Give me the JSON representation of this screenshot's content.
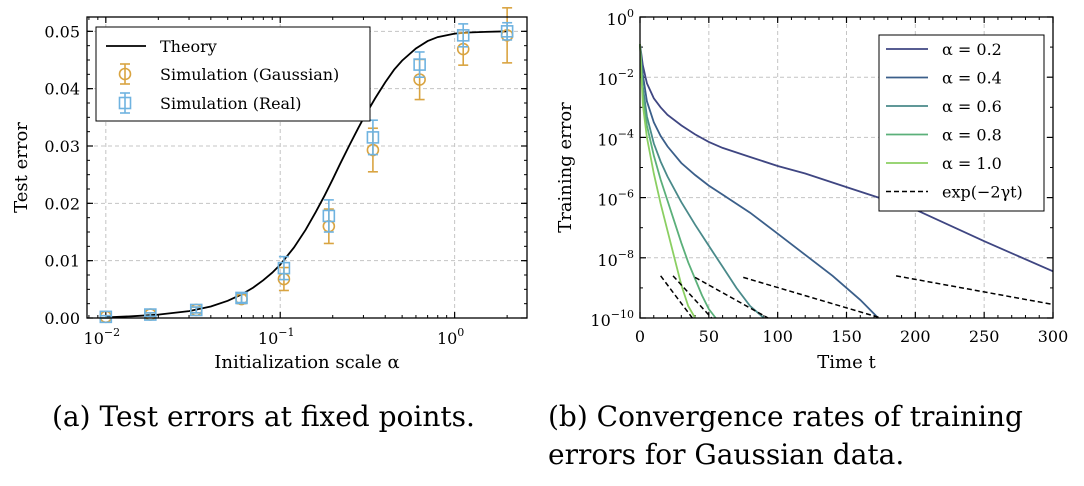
{
  "chart_data": [
    {
      "type": "line",
      "panel": "a",
      "caption": "(a) Test errors at fixed points.",
      "xlabel": "Initialization scale α",
      "ylabel": "Test error",
      "xscale": "log",
      "xlim": [
        0.0078,
        2.6
      ],
      "ylim": [
        0,
        0.0525
      ],
      "xticks": [
        0.01,
        0.1,
        1
      ],
      "xtick_labels": [
        {
          "base": "10",
          "exp": "−2"
        },
        {
          "base": "10",
          "exp": "−1"
        },
        {
          "base": "10",
          "exp": "0"
        }
      ],
      "yticks": [
        0,
        0.01,
        0.02,
        0.03,
        0.04,
        0.05
      ],
      "ytick_labels": [
        "0.00",
        "0.01",
        "0.02",
        "0.03",
        "0.04",
        "0.05"
      ],
      "grid": true,
      "legend_position": "top-left",
      "series": [
        {
          "name": "Theory",
          "kind": "curve",
          "color": "#000000",
          "x": [
            0.01,
            0.014,
            0.02,
            0.03,
            0.04,
            0.05,
            0.06,
            0.07,
            0.08,
            0.09,
            0.1,
            0.12,
            0.14,
            0.16,
            0.18,
            0.2,
            0.22,
            0.25,
            0.28,
            0.3,
            0.35,
            0.4,
            0.45,
            0.5,
            0.6,
            0.7,
            0.8,
            1.0,
            1.2,
            1.5,
            2.0
          ],
          "y": [
            0.0001,
            0.0003,
            0.0006,
            0.0012,
            0.002,
            0.003,
            0.0041,
            0.0053,
            0.0066,
            0.0079,
            0.0093,
            0.0123,
            0.0154,
            0.0185,
            0.0214,
            0.0242,
            0.0268,
            0.0302,
            0.0331,
            0.0348,
            0.0383,
            0.0411,
            0.0433,
            0.0449,
            0.047,
            0.0483,
            0.049,
            0.0496,
            0.0498,
            0.0499,
            0.05
          ]
        },
        {
          "name": "Simulation (Gaussian)",
          "kind": "errorbar",
          "marker": "circle",
          "color": "#D9A441",
          "x": [
            0.01,
            0.018,
            0.033,
            0.06,
            0.105,
            0.19,
            0.34,
            0.63,
            1.12,
            2.0
          ],
          "y": [
            0.0002,
            0.0006,
            0.0014,
            0.0033,
            0.0068,
            0.016,
            0.0293,
            0.0416,
            0.0469,
            0.0493
          ],
          "err": [
            0.0002,
            0.0003,
            0.0005,
            0.0008,
            0.002,
            0.003,
            0.0038,
            0.0035,
            0.0028,
            0.0048
          ]
        },
        {
          "name": "Simulation (Real)",
          "kind": "errorbar",
          "marker": "square",
          "color": "#6FB3E0",
          "x": [
            0.01,
            0.018,
            0.033,
            0.06,
            0.105,
            0.19,
            0.34,
            0.63,
            1.12,
            2.0
          ],
          "y": [
            0.0002,
            0.0006,
            0.0014,
            0.0035,
            0.0087,
            0.0178,
            0.0315,
            0.0442,
            0.0493,
            0.05
          ],
          "err": [
            0.0002,
            0.0003,
            0.0005,
            0.0008,
            0.002,
            0.0028,
            0.003,
            0.0022,
            0.002,
            0.0015
          ]
        }
      ]
    },
    {
      "type": "line",
      "panel": "b",
      "caption": "(b) Convergence rates of training errors for Gaussian data.",
      "xlabel": "Time t",
      "ylabel": "Training error",
      "yscale": "log",
      "xlim": [
        0,
        300
      ],
      "ylim_exp": [
        -10,
        0
      ],
      "xticks": [
        0,
        50,
        100,
        150,
        200,
        250,
        300
      ],
      "xtick_labels": [
        "0",
        "50",
        "100",
        "150",
        "200",
        "250",
        "300"
      ],
      "yticks_exp": [
        0,
        -2,
        -4,
        -6,
        -8,
        -10
      ],
      "ytick_labels": [
        {
          "base": "10",
          "exp": "0"
        },
        {
          "base": "10",
          "exp": "−2"
        },
        {
          "base": "10",
          "exp": "−4"
        },
        {
          "base": "10",
          "exp": "−6"
        },
        {
          "base": "10",
          "exp": "−8"
        },
        {
          "base": "10",
          "exp": "−10"
        }
      ],
      "grid": true,
      "legend_position": "top-right",
      "series": [
        {
          "name": "α = 0.2",
          "color": "#3F4682",
          "t": [
            0,
            2,
            5,
            10,
            15,
            20,
            30,
            40,
            50,
            60,
            80,
            100,
            120,
            150,
            180,
            200,
            250,
            300
          ],
          "log10_y": [
            -0.9,
            -1.6,
            -2.2,
            -2.7,
            -3.0,
            -3.25,
            -3.6,
            -3.9,
            -4.15,
            -4.35,
            -4.65,
            -4.95,
            -5.2,
            -5.65,
            -6.1,
            -6.4,
            -7.45,
            -8.45
          ]
        },
        {
          "name": "α = 0.4",
          "color": "#3B5F8A",
          "t": [
            0,
            2,
            5,
            10,
            15,
            20,
            30,
            40,
            50,
            60,
            80,
            100,
            120,
            140,
            160,
            173
          ],
          "log10_y": [
            -0.9,
            -1.9,
            -2.8,
            -3.5,
            -3.95,
            -4.3,
            -4.85,
            -5.25,
            -5.6,
            -5.9,
            -6.5,
            -7.2,
            -7.9,
            -8.6,
            -9.4,
            -10.0
          ]
        },
        {
          "name": "α = 0.6",
          "color": "#4A8A8A",
          "t": [
            0,
            2,
            5,
            10,
            15,
            20,
            30,
            40,
            50,
            60,
            70,
            80,
            90
          ],
          "log10_y": [
            -0.9,
            -2.3,
            -3.3,
            -4.2,
            -4.8,
            -5.3,
            -6.15,
            -6.9,
            -7.6,
            -8.3,
            -9.0,
            -9.6,
            -10.0
          ]
        },
        {
          "name": "α = 0.8",
          "color": "#5BB07A",
          "t": [
            0,
            2,
            5,
            10,
            15,
            20,
            25,
            30,
            35,
            40,
            45,
            50,
            55
          ],
          "log10_y": [
            -0.9,
            -2.6,
            -3.6,
            -4.6,
            -5.4,
            -6.1,
            -6.8,
            -7.5,
            -8.15,
            -8.7,
            -9.25,
            -9.7,
            -10.0
          ]
        },
        {
          "name": "α = 1.0",
          "color": "#8BCF62",
          "t": [
            0,
            2,
            5,
            10,
            15,
            20,
            25,
            30,
            35,
            40
          ],
          "log10_y": [
            -0.9,
            -2.9,
            -4.0,
            -5.2,
            -6.2,
            -7.1,
            -8.0,
            -8.9,
            -9.6,
            -10.0
          ]
        },
        {
          "name": "exp(−2γt)",
          "color": "#000000",
          "dashed": true,
          "segments": [
            {
              "t": [
                15,
                38
              ],
              "log10_y": [
                -8.6,
                -10.0
              ]
            },
            {
              "t": [
                24,
                52
              ],
              "log10_y": [
                -8.6,
                -10.0
              ]
            },
            {
              "t": [
                40,
                93
              ],
              "log10_y": [
                -8.65,
                -10.0
              ]
            },
            {
              "t": [
                75,
                175
              ],
              "log10_y": [
                -8.65,
                -10.0
              ]
            },
            {
              "t": [
                186,
                300
              ],
              "log10_y": [
                -8.6,
                -9.55
              ]
            }
          ]
        }
      ]
    }
  ]
}
